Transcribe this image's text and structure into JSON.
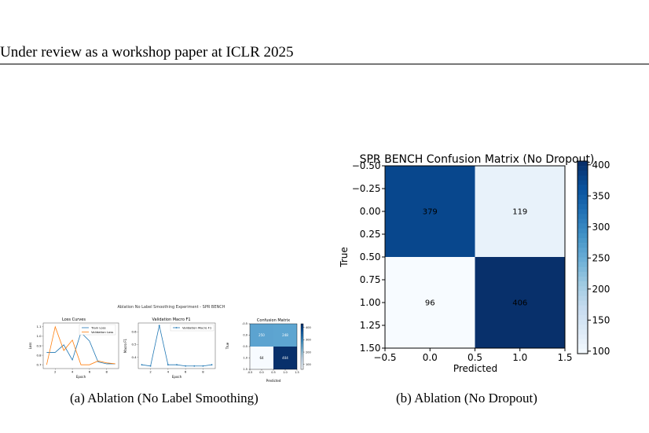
{
  "header": {
    "text": "Under review as a workshop paper at ICLR 2025"
  },
  "figures": [
    {
      "caption": "(a) Ablation (No Label Smoothing)",
      "suptitle": "Ablation No Label Smoothing Experiment - SPR BENCH",
      "panels": {
        "loss": {
          "title": "Loss Curves",
          "xlabel": "Epoch",
          "ylabel": "Loss",
          "legend": [
            "Train Loss",
            "Validation Loss"
          ]
        },
        "f1": {
          "title": "Validation Macro F1",
          "xlabel": "Epoch",
          "ylabel": "Macro F1",
          "legend": [
            "Validation Macro F1"
          ]
        },
        "cm": {
          "title": "Confusion Matrix",
          "xlabel": "Predicted",
          "ylabel": "True"
        }
      }
    },
    {
      "caption": "(b) Ablation (No Dropout)",
      "title": "SPR BENCH Confusion Matrix (No Dropout)",
      "xlabel": "Predicted",
      "ylabel": "True"
    }
  ],
  "chart_data": [
    {
      "type": "line",
      "title": "Loss Curves",
      "xlabel": "Epoch",
      "ylabel": "Loss",
      "x": [
        1,
        2,
        3,
        4,
        5,
        6,
        7,
        8,
        9
      ],
      "series": [
        {
          "name": "Train Loss",
          "values": [
            0.83,
            0.83,
            0.91,
            0.75,
            1.04,
            0.95,
            0.73,
            0.71,
            0.71
          ],
          "color": "#1f77b4"
        },
        {
          "name": "Validation Loss",
          "values": [
            0.7,
            1.1,
            0.85,
            0.96,
            0.7,
            0.7,
            0.74,
            0.72,
            0.71
          ],
          "color": "#ff7f0e"
        }
      ],
      "xticks": [
        2,
        4,
        6,
        8
      ],
      "yticks": [
        0.7,
        0.8,
        0.9,
        1.0,
        1.1
      ],
      "xlim": [
        0.6,
        9.4
      ],
      "ylim": [
        0.66,
        1.14
      ]
    },
    {
      "type": "line",
      "title": "Validation Macro F1",
      "xlabel": "Epoch",
      "ylabel": "Macro F1",
      "x": [
        1,
        2,
        3,
        4,
        5,
        6,
        7,
        8,
        9
      ],
      "series": [
        {
          "name": "Validation Macro F1",
          "values": [
            0.34,
            0.33,
            0.65,
            0.34,
            0.34,
            0.33,
            0.33,
            0.33,
            0.34
          ],
          "color": "#1f77b4"
        }
      ],
      "xticks": [
        2,
        4,
        6,
        8
      ],
      "yticks": [
        0.4,
        0.5,
        0.6
      ],
      "xlim": [
        0.6,
        9.4
      ],
      "ylim": [
        0.31,
        0.67
      ]
    },
    {
      "type": "heatmap",
      "title": "Confusion Matrix",
      "xlabel": "Predicted",
      "ylabel": "True",
      "matrix": [
        [
          250,
          248
        ],
        [
          64,
          404
        ]
      ],
      "xticks": [
        "-0.5",
        "0.0",
        "0.5",
        "1.0",
        "1.5"
      ],
      "yticks": [
        "-0.5",
        "0.0",
        "0.5",
        "1.0",
        "1.5"
      ],
      "colorbar": [
        100,
        200,
        300,
        400
      ]
    },
    {
      "type": "heatmap",
      "title": "SPR BENCH Confusion Matrix (No Dropout)",
      "xlabel": "Predicted",
      "ylabel": "True",
      "matrix": [
        [
          379,
          119
        ],
        [
          96,
          406
        ]
      ],
      "xticks": [
        "−0.5",
        "0.0",
        "0.5",
        "1.0",
        "1.5"
      ],
      "yticks": [
        "−0.50",
        "−0.25",
        "0.00",
        "0.25",
        "0.50",
        "0.75",
        "1.00",
        "1.25",
        "1.50"
      ],
      "colorbar": [
        100,
        150,
        200,
        250,
        300,
        350,
        400
      ],
      "vmin": 96,
      "vmax": 406
    }
  ]
}
